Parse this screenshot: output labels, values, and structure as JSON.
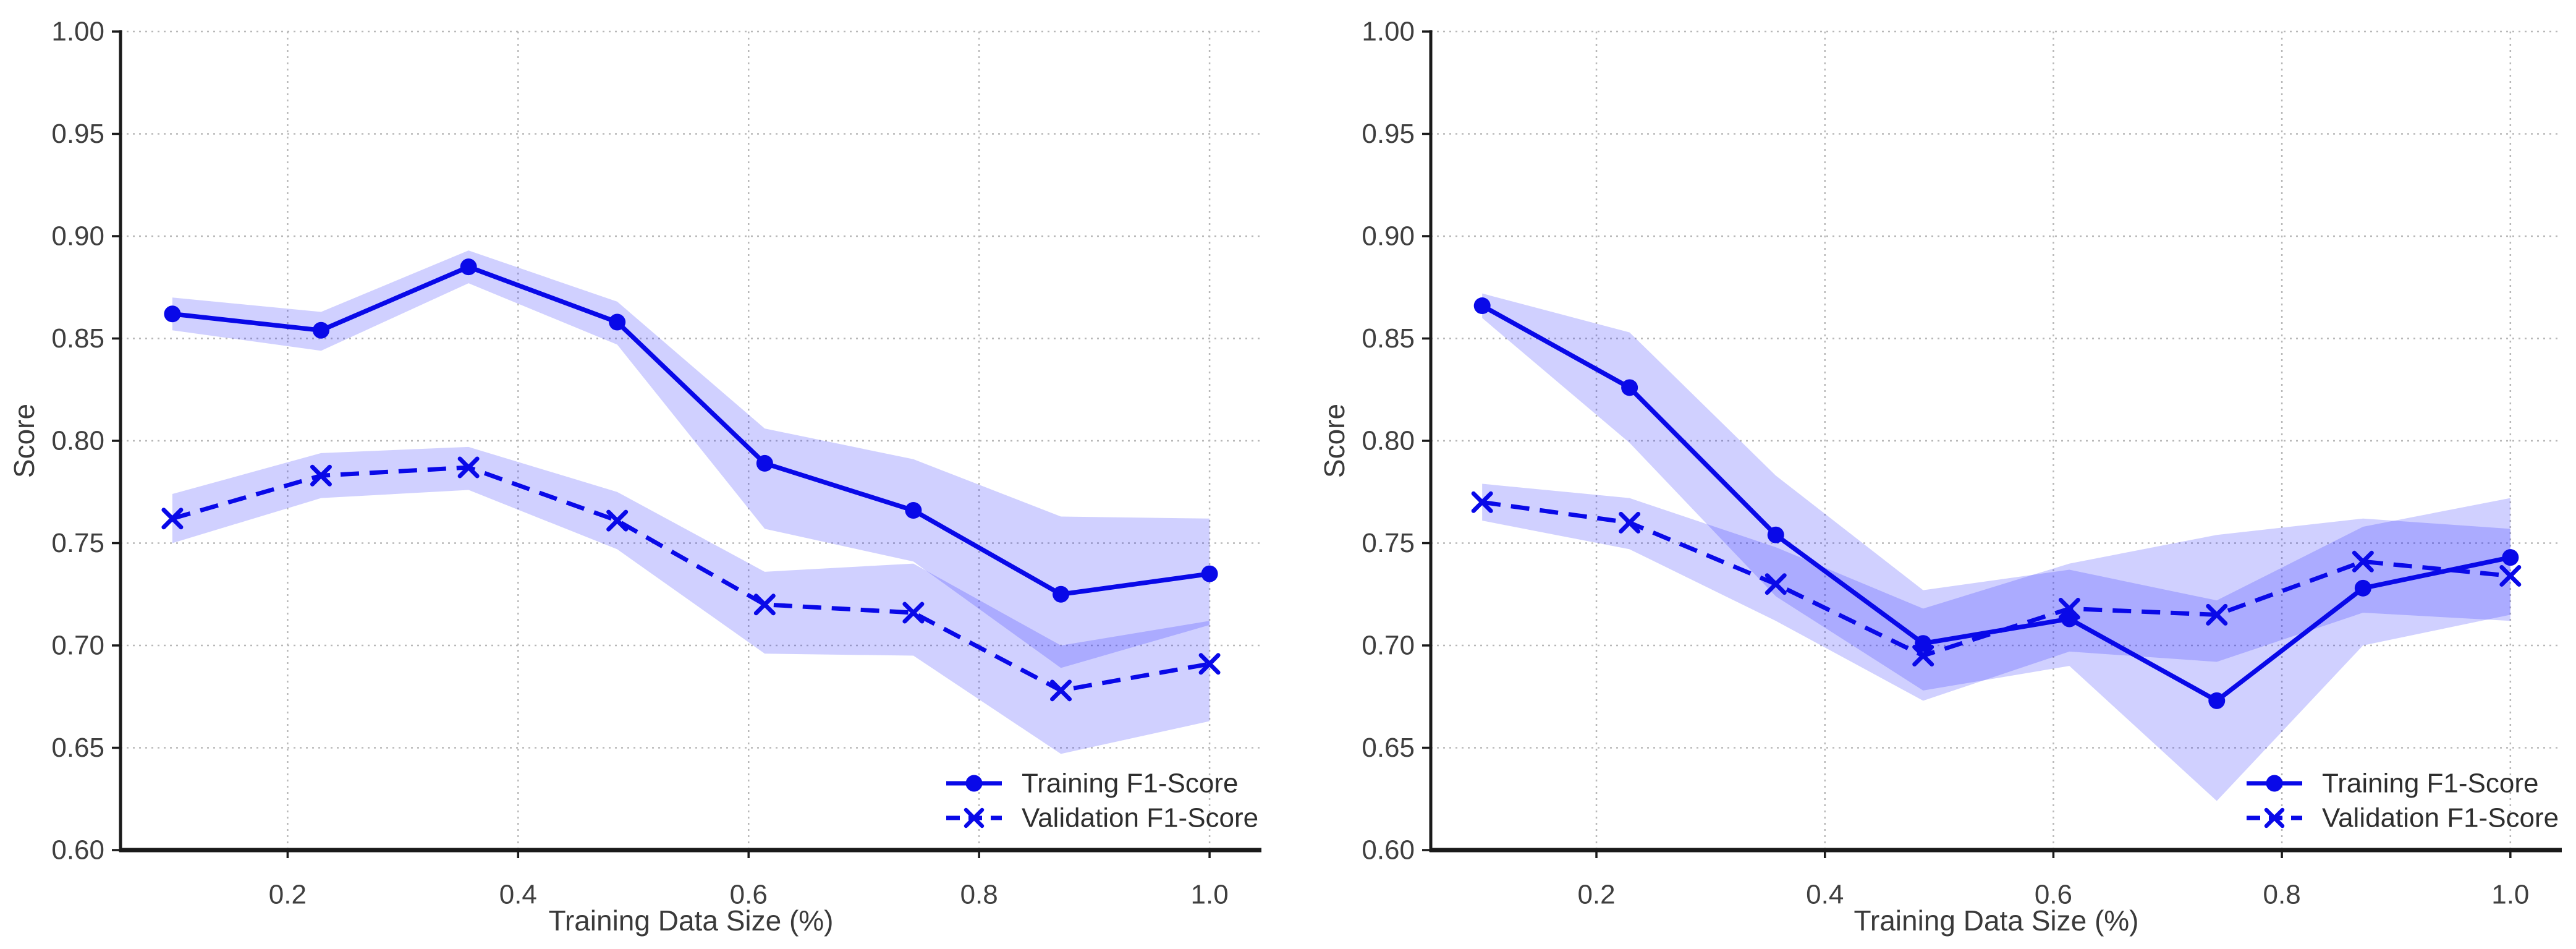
{
  "figure": {
    "background": "#ffffff",
    "num_subplots": 2
  },
  "colors": {
    "series_blue": "#0909e8",
    "band_fill": "#2020ff",
    "band_opacity": 0.21,
    "grid": "#b8b8b8",
    "spine": "#1a1a1a",
    "tick_text": "#3f3f3f",
    "axis_label_text": "#3a3a3a",
    "legend_text": "#2e2e2e"
  },
  "chart_data": [
    {
      "type": "line",
      "title": "",
      "xlabel": "Training Data Size (%)",
      "ylabel": "Score",
      "xlim": [
        0.055,
        1.045
      ],
      "ylim": [
        0.6,
        1.0
      ],
      "grid": "dotted",
      "legend_position": "lower right",
      "xticks": [
        0.2,
        0.4,
        0.6,
        0.8,
        1.0
      ],
      "xticklabels": [
        "0.2",
        "0.4",
        "0.6",
        "0.8",
        "1.0"
      ],
      "yticks": [
        0.6,
        0.65,
        0.7,
        0.75,
        0.8,
        0.85,
        0.9,
        0.95,
        1.0
      ],
      "yticklabels": [
        "0.60",
        "0.65",
        "0.70",
        "0.75",
        "0.80",
        "0.85",
        "0.90",
        "0.95",
        "1.00"
      ],
      "x": [
        0.1,
        0.229,
        0.357,
        0.486,
        0.614,
        0.743,
        0.871,
        1.0
      ],
      "series": [
        {
          "name": "Training F1-Score",
          "line_style": "solid",
          "marker": "circle",
          "values": [
            0.862,
            0.854,
            0.885,
            0.858,
            0.789,
            0.766,
            0.725,
            0.735
          ],
          "band_lower": [
            0.854,
            0.844,
            0.877,
            0.847,
            0.757,
            0.741,
            0.689,
            0.71
          ],
          "band_upper": [
            0.87,
            0.863,
            0.893,
            0.868,
            0.806,
            0.791,
            0.763,
            0.762
          ]
        },
        {
          "name": "Validation F1-Score",
          "line_style": "dashed",
          "marker": "x",
          "values": [
            0.762,
            0.783,
            0.787,
            0.761,
            0.72,
            0.716,
            0.678,
            0.691
          ],
          "band_lower": [
            0.75,
            0.772,
            0.776,
            0.747,
            0.696,
            0.695,
            0.647,
            0.663
          ],
          "band_upper": [
            0.774,
            0.794,
            0.797,
            0.775,
            0.736,
            0.74,
            0.7,
            0.712
          ]
        }
      ]
    },
    {
      "type": "line",
      "title": "",
      "xlabel": "Training Data Size (%)",
      "ylabel": "Score",
      "xlim": [
        0.055,
        1.045
      ],
      "ylim": [
        0.6,
        1.0
      ],
      "grid": "dotted",
      "legend_position": "lower right",
      "xticks": [
        0.2,
        0.4,
        0.6,
        0.8,
        1.0
      ],
      "xticklabels": [
        "0.2",
        "0.4",
        "0.6",
        "0.8",
        "1.0"
      ],
      "yticks": [
        0.6,
        0.65,
        0.7,
        0.75,
        0.8,
        0.85,
        0.9,
        0.95,
        1.0
      ],
      "yticklabels": [
        "0.60",
        "0.65",
        "0.70",
        "0.75",
        "0.80",
        "0.85",
        "0.90",
        "0.95",
        "1.00"
      ],
      "x": [
        0.1,
        0.229,
        0.357,
        0.486,
        0.614,
        0.743,
        0.871,
        1.0
      ],
      "series": [
        {
          "name": "Training F1-Score",
          "line_style": "solid",
          "marker": "circle",
          "values": [
            0.866,
            0.826,
            0.754,
            0.701,
            0.713,
            0.673,
            0.728,
            0.743
          ],
          "band_lower": [
            0.86,
            0.799,
            0.724,
            0.678,
            0.69,
            0.624,
            0.7,
            0.715
          ],
          "band_upper": [
            0.872,
            0.853,
            0.783,
            0.727,
            0.737,
            0.722,
            0.758,
            0.772
          ]
        },
        {
          "name": "Validation F1-Score",
          "line_style": "dashed",
          "marker": "x",
          "values": [
            0.77,
            0.76,
            0.73,
            0.695,
            0.718,
            0.715,
            0.741,
            0.734
          ],
          "band_lower": [
            0.761,
            0.747,
            0.712,
            0.673,
            0.697,
            0.692,
            0.716,
            0.712
          ],
          "band_upper": [
            0.779,
            0.772,
            0.748,
            0.718,
            0.74,
            0.754,
            0.762,
            0.757
          ]
        }
      ]
    }
  ]
}
